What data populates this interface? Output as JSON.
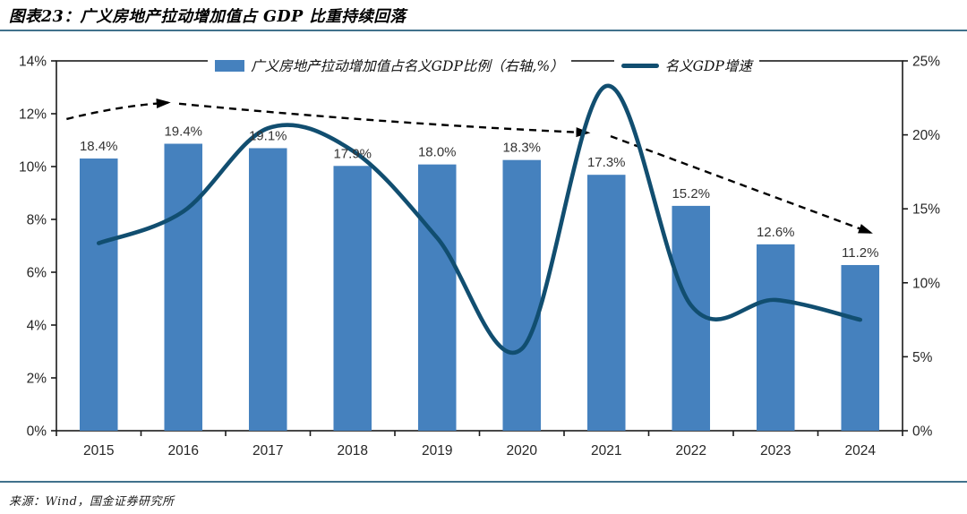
{
  "title": "图表23：广义房地产拉动增加值占 GDP 比重持续回落",
  "source": "来源：Wind，国金证券研究所",
  "colors": {
    "bar": "#4581BE",
    "line": "#114E70",
    "dashed": "#000000",
    "rule": "#41718C",
    "axis": "#1A1A1A",
    "tick_label": "#262626",
    "data_label": "#333333"
  },
  "legend": {
    "items": [
      {
        "type": "bar",
        "label": "广义房地产拉动增加值占名义GDP比例（右轴,%）"
      },
      {
        "type": "line",
        "label": "名义GDP增速"
      }
    ]
  },
  "chart_data": {
    "type": "combo-bar-line",
    "title": "图表23：广义房地产拉动增加值占 GDP 比重持续回落",
    "categories": [
      "2015",
      "2016",
      "2017",
      "2018",
      "2019",
      "2020",
      "2021",
      "2022",
      "2023",
      "2024"
    ],
    "series": [
      {
        "name": "广义房地产拉动增加值占名义GDP比例（右轴,%）",
        "type": "bar",
        "axis": "right",
        "values": [
          18.4,
          19.4,
          19.1,
          17.9,
          18.0,
          18.3,
          17.3,
          15.2,
          12.6,
          11.2
        ],
        "labels": [
          "18.4%",
          "19.4%",
          "19.1%",
          "17.9%",
          "18.0%",
          "18.3%",
          "17.3%",
          "15.2%",
          "12.6%",
          "11.2%"
        ]
      },
      {
        "name": "名义GDP增速",
        "type": "line",
        "axis": "left",
        "values": [
          7.1,
          8.3,
          11.45,
          10.6,
          7.3,
          3.1,
          13.05,
          4.75,
          4.95,
          4.2
        ]
      }
    ],
    "trend_arrows": [
      {
        "kind": "quad",
        "points": [
          [
            -0.38,
            11.8
          ],
          [
            0.25,
            12.3
          ],
          [
            0.82,
            12.42
          ]
        ]
      },
      {
        "kind": "quad",
        "points": [
          [
            0.95,
            12.38
          ],
          [
            3.4,
            11.62
          ],
          [
            5.78,
            11.28
          ]
        ]
      },
      {
        "kind": "line",
        "points": [
          [
            6.05,
            11.15
          ],
          [
            9.12,
            7.5
          ]
        ]
      }
    ],
    "left_axis": {
      "min": 0,
      "max": 14,
      "tick_labels": [
        "0%",
        "2%",
        "4%",
        "6%",
        "8%",
        "10%",
        "12%",
        "14%"
      ]
    },
    "right_axis": {
      "min": 0,
      "max": 25,
      "tick_labels": [
        "0%",
        "5%",
        "10%",
        "15%",
        "20%",
        "25%"
      ]
    },
    "x_axis": {
      "tick_labels": [
        "2015",
        "2016",
        "2017",
        "2018",
        "2019",
        "2020",
        "2021",
        "2022",
        "2023",
        "2024"
      ]
    },
    "grid": false,
    "legend_position": "top"
  }
}
